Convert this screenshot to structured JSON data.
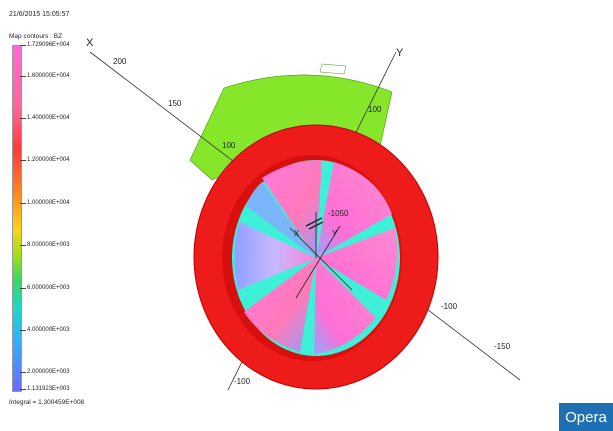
{
  "timestamp": "21/6/2015 15:05:57",
  "map": {
    "title": "Map contours : BZ",
    "scale_labels": [
      "1.729096E+004",
      "1.600000E+004",
      "1.400000E+004",
      "1.200000E+004",
      "1.000000E+004",
      "8.000000E+003",
      "6.000000E+003",
      "4.000000E+003",
      "2.000000E+003",
      "1.131923E+003"
    ],
    "integral": "Integral = 1.300459E+008"
  },
  "axes": {
    "x_letter": "X",
    "y_letter": "Y",
    "x_ticks": [
      "200",
      "150",
      "100",
      "-100",
      "-150"
    ],
    "y_ticks": [
      "100",
      "-100"
    ],
    "center_label": "-1050",
    "inner_x": "X",
    "inner_y": "Y"
  },
  "colors": {
    "ring": "#ee1b1b",
    "sector": "#86e62a",
    "brand_button": "#1f6fb3"
  },
  "brand": {
    "label": "Opera"
  }
}
